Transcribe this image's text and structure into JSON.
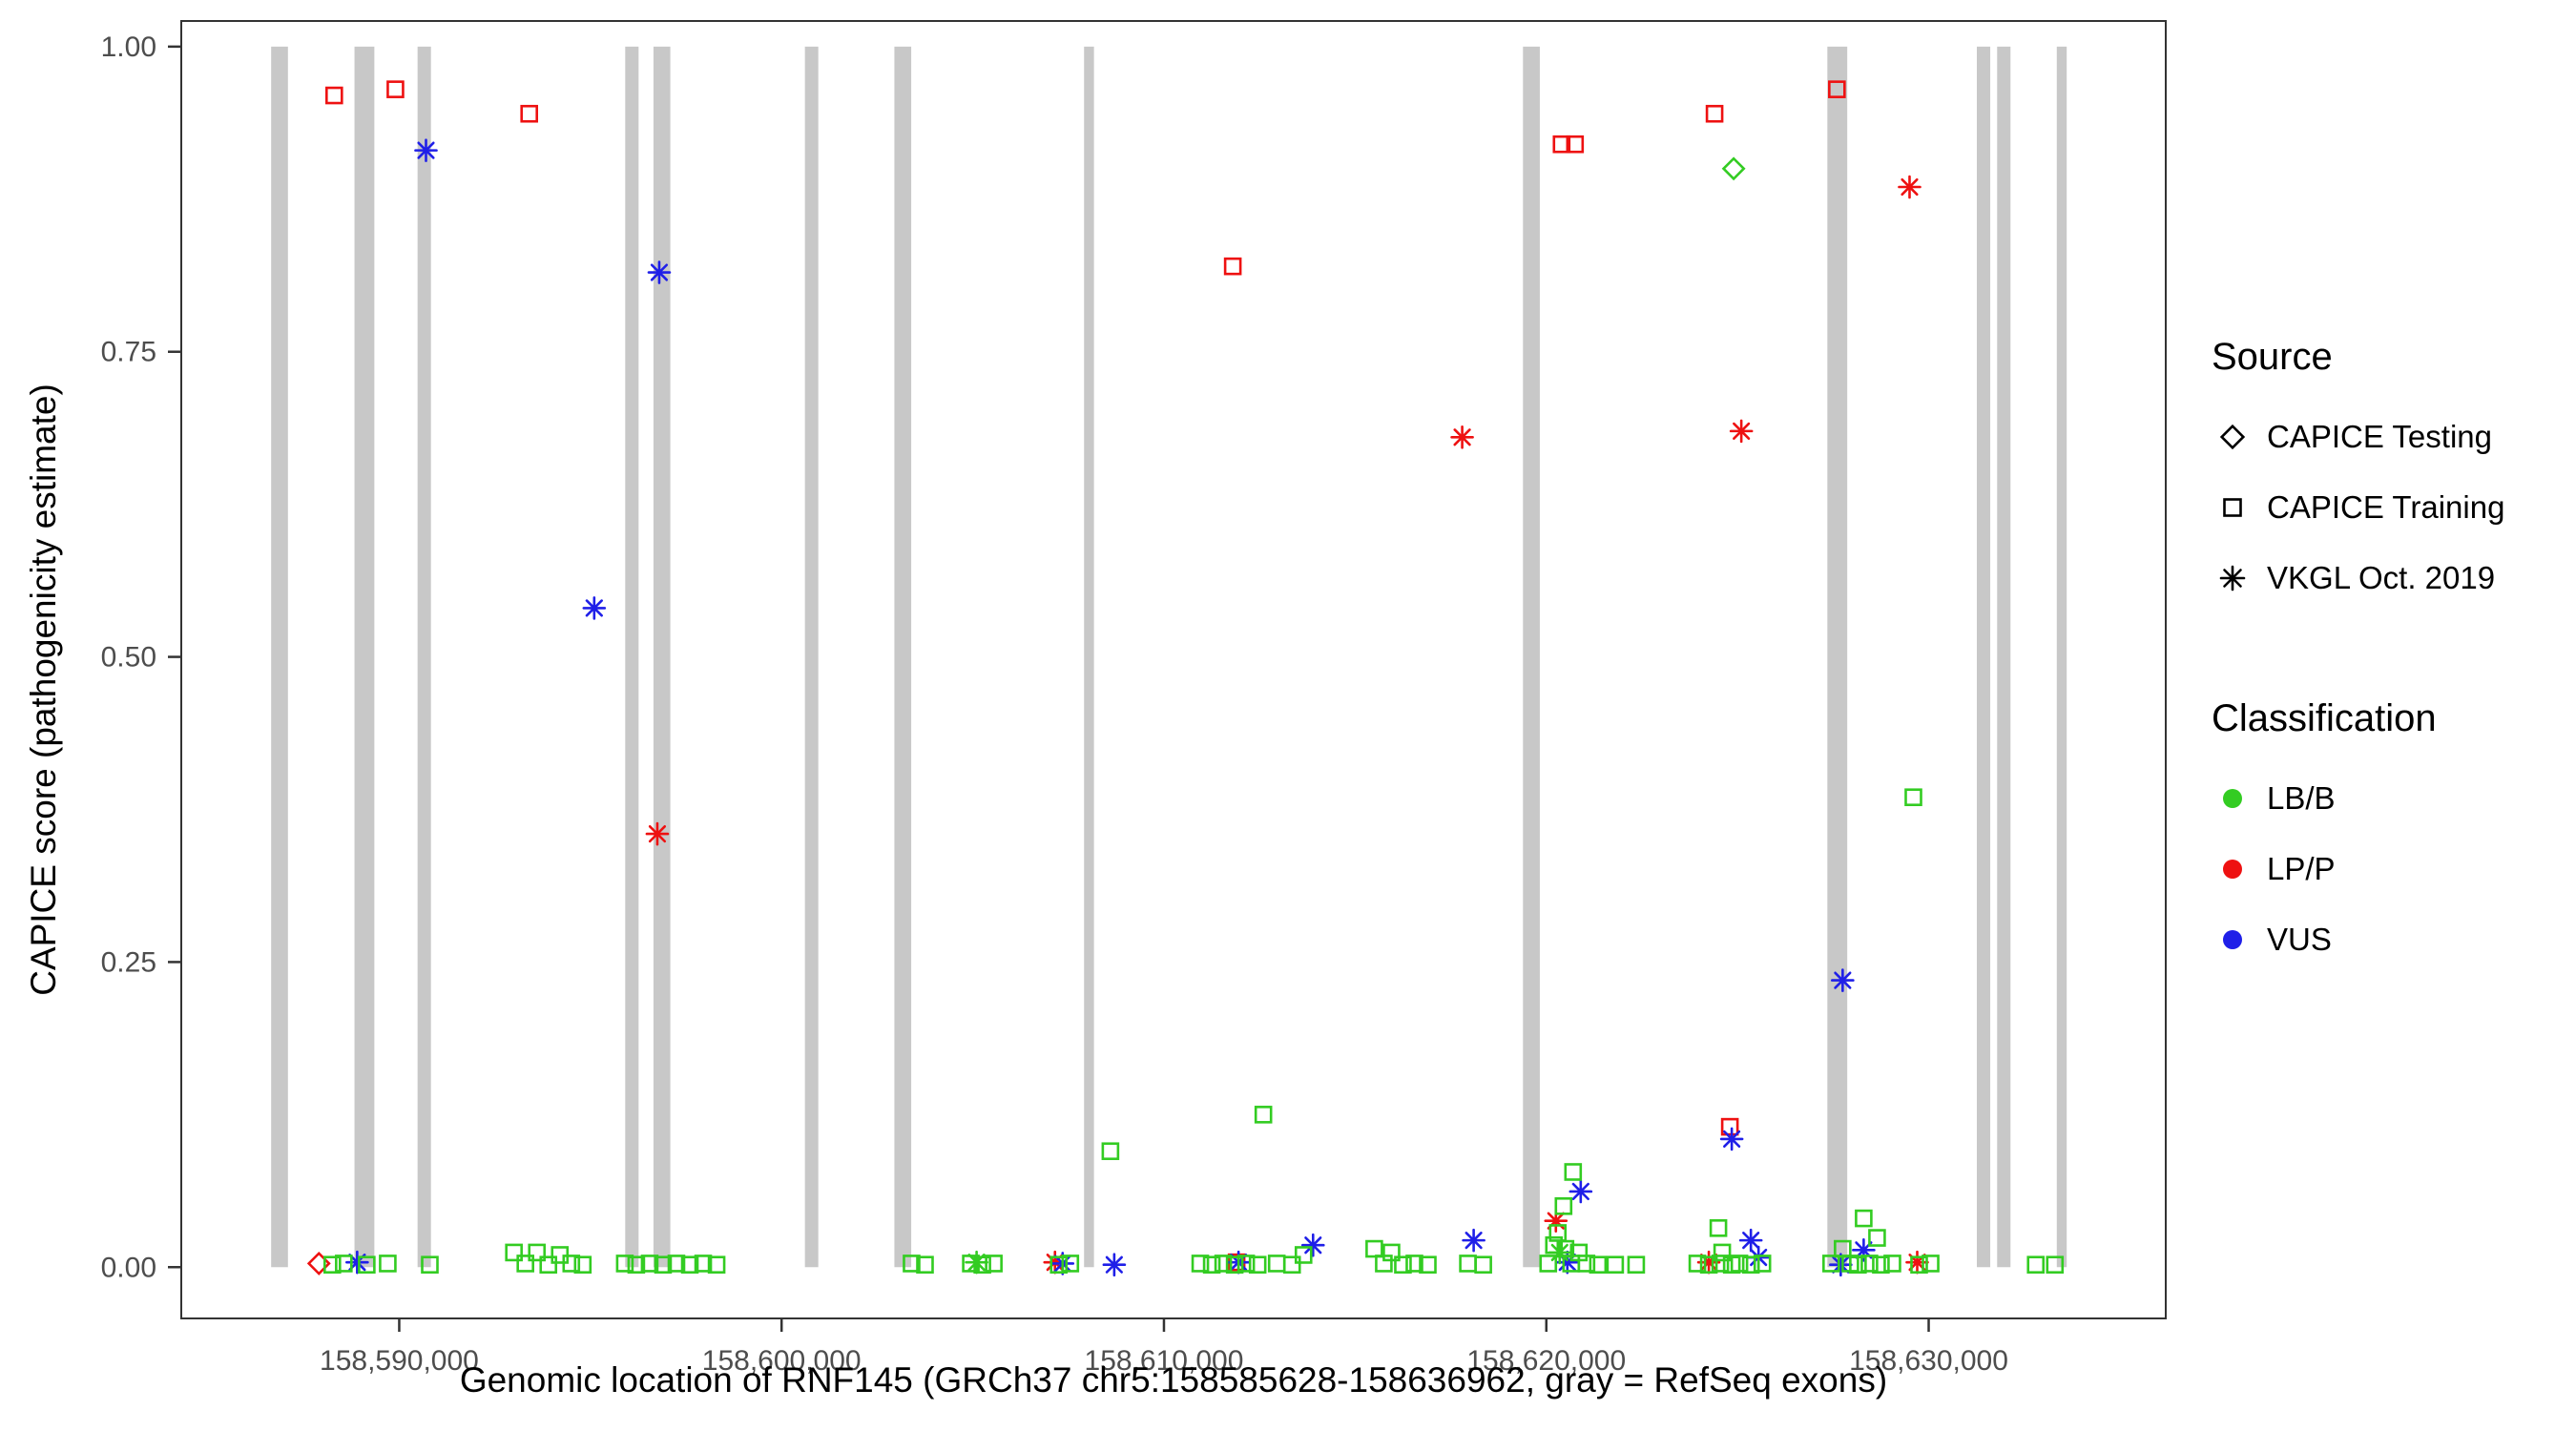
{
  "colors": {
    "exon": "#C8C8C8",
    "panel_border": "#333333",
    "tick_text": "#4D4D4D",
    "classification": {
      "LB/B": "#33CC22",
      "LP/P": "#EE1111",
      "VUS": "#1F1FE8"
    }
  },
  "legend": {
    "source": {
      "title": "Source",
      "items": [
        {
          "label": "CAPICE Testing",
          "marker": "diamond"
        },
        {
          "label": "CAPICE Training",
          "marker": "square"
        },
        {
          "label": "VKGL Oct. 2019",
          "marker": "asterisk"
        }
      ]
    },
    "classification": {
      "title": "Classification",
      "items": [
        {
          "label": "LB/B",
          "color": "#33CC22"
        },
        {
          "label": "LP/P",
          "color": "#EE1111"
        },
        {
          "label": "VUS",
          "color": "#1F1FE8"
        }
      ]
    }
  },
  "chart_data": {
    "type": "scatter",
    "xlabel": "Genomic location of RNF145 (GRCh37 chr5:158585628-158636962, gray = RefSeq exons)",
    "ylabel": "CAPICE score (pathogenicity estimate)",
    "xlim": [
      158584300,
      158636200
    ],
    "ylim": [
      -0.042,
      1.021
    ],
    "grid": false,
    "legend_position": "right",
    "x_ticks": [
      {
        "pos": 158590000,
        "label": "158,590,000"
      },
      {
        "pos": 158600000,
        "label": "158,600,000"
      },
      {
        "pos": 158610000,
        "label": "158,610,000"
      },
      {
        "pos": 158620000,
        "label": "158,620,000"
      },
      {
        "pos": 158630000,
        "label": "158,630,000"
      }
    ],
    "y_ticks": [
      {
        "value": 0,
        "label": "0.00"
      },
      {
        "value": 0.25,
        "label": "0.25"
      },
      {
        "value": 0.5,
        "label": "0.50"
      },
      {
        "value": 0.75,
        "label": "0.75"
      },
      {
        "value": 1,
        "label": "1.00"
      }
    ],
    "exons_note": "gray vertical bars = RefSeq exons, [start,end] in bp",
    "exons": [
      [
        158586650,
        158587090
      ],
      [
        158588830,
        158589350
      ],
      [
        158590480,
        158590830
      ],
      [
        158595910,
        158596260
      ],
      [
        158596650,
        158597090
      ],
      [
        158600610,
        158600960
      ],
      [
        158602950,
        158603390
      ],
      [
        158607910,
        158608170
      ],
      [
        158619390,
        158619830
      ],
      [
        158627350,
        158627870
      ],
      [
        158631260,
        158631610
      ],
      [
        158631790,
        158632140
      ],
      [
        158633350,
        158633610
      ]
    ],
    "points_fields": [
      "source",
      "classification",
      "genomic_position",
      "capice_score"
    ],
    "points": [
      [
        "CAPICE Training",
        "LP/P",
        158588300,
        0.96
      ],
      [
        "CAPICE Training",
        "LP/P",
        158589900,
        0.965
      ],
      [
        "CAPICE Training",
        "LP/P",
        158593400,
        0.945
      ],
      [
        "CAPICE Training",
        "LP/P",
        158611800,
        0.82
      ],
      [
        "CAPICE Training",
        "LP/P",
        158620400,
        0.92
      ],
      [
        "CAPICE Training",
        "LP/P",
        158620750,
        0.92
      ],
      [
        "CAPICE Training",
        "LP/P",
        158624400,
        0.945
      ],
      [
        "CAPICE Training",
        "LP/P",
        158627600,
        0.965
      ],
      [
        "CAPICE Training",
        "LP/P",
        158624800,
        0.115
      ],
      [
        "CAPICE Training",
        "LP/P",
        158611900,
        0.004
      ],
      [
        "CAPICE Testing",
        "LB/B",
        158624900,
        0.9
      ],
      [
        "CAPICE Testing",
        "LP/P",
        158587900,
        0.003
      ],
      [
        "VKGL Oct. 2019",
        "LP/P",
        158596750,
        0.355
      ],
      [
        "VKGL Oct. 2019",
        "LP/P",
        158617800,
        0.68
      ],
      [
        "VKGL Oct. 2019",
        "LP/P",
        158625100,
        0.685
      ],
      [
        "VKGL Oct. 2019",
        "LP/P",
        158629500,
        0.885
      ],
      [
        "VKGL Oct. 2019",
        "LP/P",
        158607150,
        0.004
      ],
      [
        "VKGL Oct. 2019",
        "LP/P",
        158620250,
        0.038
      ],
      [
        "VKGL Oct. 2019",
        "LP/P",
        158624250,
        0.004
      ],
      [
        "VKGL Oct. 2019",
        "LP/P",
        158629700,
        0.004
      ],
      [
        "VKGL Oct. 2019",
        "VUS",
        158590700,
        0.915
      ],
      [
        "VKGL Oct. 2019",
        "VUS",
        158596800,
        0.815
      ],
      [
        "VKGL Oct. 2019",
        "VUS",
        158595100,
        0.54
      ],
      [
        "VKGL Oct. 2019",
        "VUS",
        158627750,
        0.235
      ],
      [
        "VKGL Oct. 2019",
        "VUS",
        158624850,
        0.105
      ],
      [
        "VKGL Oct. 2019",
        "VUS",
        158620900,
        0.062
      ],
      [
        "VKGL Oct. 2019",
        "VUS",
        158613900,
        0.018
      ],
      [
        "VKGL Oct. 2019",
        "VUS",
        158618100,
        0.022
      ],
      [
        "VKGL Oct. 2019",
        "VUS",
        158588900,
        0.004
      ],
      [
        "VKGL Oct. 2019",
        "VUS",
        158607350,
        0.003
      ],
      [
        "VKGL Oct. 2019",
        "VUS",
        158608700,
        0.002
      ],
      [
        "VKGL Oct. 2019",
        "VUS",
        158611950,
        0.004
      ],
      [
        "VKGL Oct. 2019",
        "VUS",
        158620550,
        0.004
      ],
      [
        "VKGL Oct. 2019",
        "VUS",
        158625350,
        0.022
      ],
      [
        "VKGL Oct. 2019",
        "VUS",
        158625550,
        0.008
      ],
      [
        "VKGL Oct. 2019",
        "VUS",
        158627700,
        0.002
      ],
      [
        "VKGL Oct. 2019",
        "VUS",
        158628300,
        0.014
      ],
      [
        "VKGL Oct. 2019",
        "LB/B",
        158605100,
        0.004
      ],
      [
        "VKGL Oct. 2019",
        "LB/B",
        158620350,
        0.012
      ],
      [
        "CAPICE Training",
        "LB/B",
        158629600,
        0.385
      ],
      [
        "CAPICE Training",
        "LB/B",
        158608600,
        0.095
      ],
      [
        "CAPICE Training",
        "LB/B",
        158612600,
        0.125
      ],
      [
        "CAPICE Training",
        "LB/B",
        158620700,
        0.078
      ],
      [
        "CAPICE Training",
        "LB/B",
        158620450,
        0.05
      ],
      [
        "CAPICE Training",
        "LB/B",
        158624500,
        0.032
      ],
      [
        "CAPICE Training",
        "LB/B",
        158628300,
        0.04
      ],
      [
        "CAPICE Training",
        "LB/B",
        158628650,
        0.024
      ],
      [
        "CAPICE Training",
        "LB/B",
        158624600,
        0.012
      ],
      [
        "CAPICE Training",
        "LB/B",
        158620300,
        0.028
      ],
      [
        "CAPICE Training",
        "LB/B",
        158620200,
        0.018
      ],
      [
        "CAPICE Training",
        "LB/B",
        158588250,
        0.002
      ],
      [
        "CAPICE Training",
        "LB/B",
        158588550,
        0.003
      ],
      [
        "CAPICE Training",
        "LB/B",
        158589150,
        0.002
      ],
      [
        "CAPICE Training",
        "LB/B",
        158589700,
        0.003
      ],
      [
        "CAPICE Training",
        "LB/B",
        158590800,
        0.002
      ],
      [
        "CAPICE Training",
        "LB/B",
        158593000,
        0.012
      ],
      [
        "CAPICE Training",
        "LB/B",
        158593300,
        0.003
      ],
      [
        "CAPICE Training",
        "LB/B",
        158593600,
        0.012
      ],
      [
        "CAPICE Training",
        "LB/B",
        158593900,
        0.002
      ],
      [
        "CAPICE Training",
        "LB/B",
        158594200,
        0.01
      ],
      [
        "CAPICE Training",
        "LB/B",
        158594500,
        0.003
      ],
      [
        "CAPICE Training",
        "LB/B",
        158594800,
        0.002
      ],
      [
        "CAPICE Training",
        "LB/B",
        158595900,
        0.003
      ],
      [
        "CAPICE Training",
        "LB/B",
        158596200,
        0.002
      ],
      [
        "CAPICE Training",
        "LB/B",
        158596550,
        0.003
      ],
      [
        "CAPICE Training",
        "LB/B",
        158596900,
        0.002
      ],
      [
        "CAPICE Training",
        "LB/B",
        158597250,
        0.003
      ],
      [
        "CAPICE Training",
        "LB/B",
        158597600,
        0.002
      ],
      [
        "CAPICE Training",
        "LB/B",
        158597950,
        0.003
      ],
      [
        "CAPICE Training",
        "LB/B",
        158598300,
        0.002
      ],
      [
        "CAPICE Training",
        "LB/B",
        158603400,
        0.003
      ],
      [
        "CAPICE Training",
        "LB/B",
        158603750,
        0.002
      ],
      [
        "CAPICE Training",
        "LB/B",
        158604950,
        0.003
      ],
      [
        "CAPICE Training",
        "LB/B",
        158605250,
        0.002
      ],
      [
        "CAPICE Training",
        "LB/B",
        158605550,
        0.003
      ],
      [
        "CAPICE Training",
        "LB/B",
        158607250,
        0.002
      ],
      [
        "CAPICE Training",
        "LB/B",
        158607550,
        0.003
      ],
      [
        "CAPICE Training",
        "LB/B",
        158610950,
        0.003
      ],
      [
        "CAPICE Training",
        "LB/B",
        158611250,
        0.002
      ],
      [
        "CAPICE Training",
        "LB/B",
        158611550,
        0.003
      ],
      [
        "CAPICE Training",
        "LB/B",
        158611850,
        0.002
      ],
      [
        "CAPICE Training",
        "LB/B",
        158612150,
        0.003
      ],
      [
        "CAPICE Training",
        "LB/B",
        158612450,
        0.002
      ],
      [
        "CAPICE Training",
        "LB/B",
        158612950,
        0.003
      ],
      [
        "CAPICE Training",
        "LB/B",
        158613350,
        0.002
      ],
      [
        "CAPICE Training",
        "LB/B",
        158613650,
        0.01
      ],
      [
        "CAPICE Training",
        "LB/B",
        158615500,
        0.015
      ],
      [
        "CAPICE Training",
        "LB/B",
        158615750,
        0.003
      ],
      [
        "CAPICE Training",
        "LB/B",
        158615950,
        0.012
      ],
      [
        "CAPICE Training",
        "LB/B",
        158616250,
        0.002
      ],
      [
        "CAPICE Training",
        "LB/B",
        158616550,
        0.003
      ],
      [
        "CAPICE Training",
        "LB/B",
        158616900,
        0.002
      ],
      [
        "CAPICE Training",
        "LB/B",
        158617950,
        0.003
      ],
      [
        "CAPICE Training",
        "LB/B",
        158618350,
        0.002
      ],
      [
        "CAPICE Training",
        "LB/B",
        158620050,
        0.003
      ],
      [
        "CAPICE Training",
        "LB/B",
        158620500,
        0.015
      ],
      [
        "CAPICE Training",
        "LB/B",
        158620650,
        0.003
      ],
      [
        "CAPICE Training",
        "LB/B",
        158620850,
        0.012
      ],
      [
        "CAPICE Training",
        "LB/B",
        158621050,
        0.003
      ],
      [
        "CAPICE Training",
        "LB/B",
        158621350,
        0.002
      ],
      [
        "CAPICE Training",
        "LB/B",
        158621800,
        0.002
      ],
      [
        "CAPICE Training",
        "LB/B",
        158622350,
        0.002
      ],
      [
        "CAPICE Training",
        "LB/B",
        158623950,
        0.003
      ],
      [
        "CAPICE Training",
        "LB/B",
        158624250,
        0.002
      ],
      [
        "CAPICE Training",
        "LB/B",
        158624550,
        0.003
      ],
      [
        "CAPICE Training",
        "LB/B",
        158624850,
        0.002
      ],
      [
        "CAPICE Training",
        "LB/B",
        158625050,
        0.003
      ],
      [
        "CAPICE Training",
        "LB/B",
        158625350,
        0.002
      ],
      [
        "CAPICE Training",
        "LB/B",
        158625650,
        0.003
      ],
      [
        "CAPICE Training",
        "LB/B",
        158627450,
        0.003
      ],
      [
        "CAPICE Training",
        "LB/B",
        158627750,
        0.015
      ],
      [
        "CAPICE Training",
        "LB/B",
        158627950,
        0.003
      ],
      [
        "CAPICE Training",
        "LB/B",
        158628150,
        0.002
      ],
      [
        "CAPICE Training",
        "LB/B",
        158628450,
        0.003
      ],
      [
        "CAPICE Training",
        "LB/B",
        158628750,
        0.002
      ],
      [
        "CAPICE Training",
        "LB/B",
        158629050,
        0.003
      ],
      [
        "CAPICE Training",
        "LB/B",
        158629750,
        0.002
      ],
      [
        "CAPICE Training",
        "LB/B",
        158630050,
        0.003
      ],
      [
        "CAPICE Training",
        "LB/B",
        158632800,
        0.002
      ],
      [
        "CAPICE Training",
        "LB/B",
        158633300,
        0.002
      ]
    ]
  }
}
